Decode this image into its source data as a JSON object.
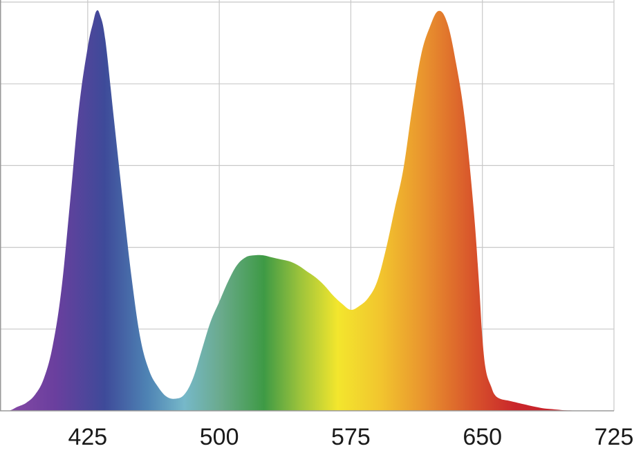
{
  "chart_data": {
    "type": "area",
    "title": "",
    "xlabel": "",
    "ylabel": "",
    "xlim": [
      375,
      725
    ],
    "ylim": [
      0,
      1
    ],
    "grid": true,
    "x_ticks": [
      425,
      500,
      575,
      650,
      725
    ],
    "x_tick_labels": [
      "425",
      "500",
      "575",
      "650",
      "725"
    ],
    "y_grid_values": [
      0.2,
      0.4,
      0.6,
      0.8,
      1.0
    ],
    "fill": "visible-spectrum-gradient",
    "series": [
      {
        "x": [
          375,
          380,
          385,
          390,
          395,
          400,
          405,
          410,
          415,
          420,
          425,
          428,
          430,
          432,
          435,
          440,
          445,
          450,
          455,
          460,
          465,
          470,
          475,
          480,
          485,
          490,
          495,
          500,
          505,
          510,
          515,
          520,
          525,
          530,
          535,
          540,
          545,
          550,
          555,
          560,
          565,
          570,
          575,
          580,
          585,
          590,
          595,
          600,
          605,
          610,
          615,
          620,
          625,
          630,
          635,
          640,
          645,
          648,
          650,
          652,
          655,
          657,
          660,
          665,
          670,
          675,
          680,
          685,
          690,
          695,
          700,
          705,
          710,
          715,
          720,
          725
        ],
        "y": [
          0.0,
          0.0,
          0.01,
          0.02,
          0.04,
          0.08,
          0.16,
          0.3,
          0.52,
          0.75,
          0.9,
          0.96,
          0.99,
          0.98,
          0.92,
          0.72,
          0.52,
          0.33,
          0.18,
          0.1,
          0.06,
          0.035,
          0.03,
          0.04,
          0.08,
          0.15,
          0.22,
          0.27,
          0.32,
          0.36,
          0.38,
          0.385,
          0.385,
          0.38,
          0.375,
          0.37,
          0.36,
          0.345,
          0.33,
          0.31,
          0.285,
          0.265,
          0.25,
          0.26,
          0.28,
          0.32,
          0.4,
          0.5,
          0.6,
          0.75,
          0.88,
          0.95,
          0.99,
          0.96,
          0.86,
          0.72,
          0.5,
          0.32,
          0.18,
          0.1,
          0.06,
          0.04,
          0.03,
          0.025,
          0.02,
          0.015,
          0.01,
          0.006,
          0.004,
          0.002,
          0.001,
          0.0,
          0.0,
          0.0,
          0.0,
          0.0
        ]
      }
    ]
  }
}
